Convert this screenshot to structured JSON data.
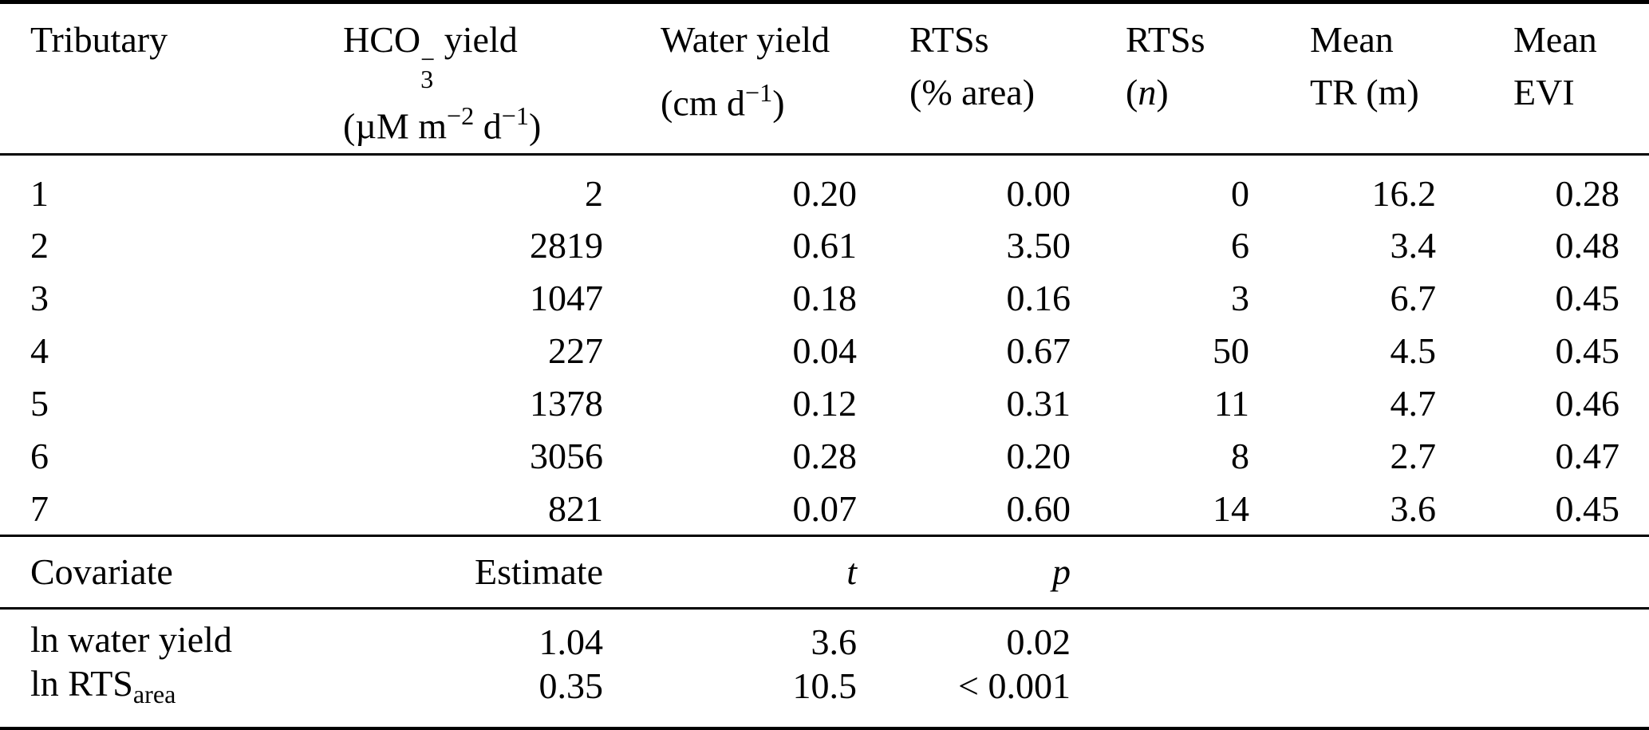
{
  "table": {
    "header": {
      "col1": "Tributary",
      "col2": {
        "base": "HCO",
        "sup": "−",
        "sub": "3",
        "rest": " yield",
        "unit_open": "(µM m",
        "unit_sup1": "−2",
        "unit_mid": " d",
        "unit_sup2": "−1",
        "unit_close": ")"
      },
      "col3": {
        "line1": "Water yield",
        "unit_open": "(cm d",
        "unit_sup": "−1",
        "unit_close": ")"
      },
      "col4": {
        "line1": "RTSs",
        "line2": "(% area)"
      },
      "col5": {
        "line1": "RTSs",
        "paren_open": "(",
        "n": "n",
        "paren_close": ")"
      },
      "col6": {
        "line1": "Mean",
        "line2": "TR (m)"
      },
      "col7": {
        "line1": "Mean",
        "line2": "EVI"
      }
    },
    "rows": [
      {
        "tributary": "1",
        "hco3": "2",
        "water": "0.20",
        "rts_area": "0.00",
        "rts_n": "0",
        "tr": "16.2",
        "evi": "0.28"
      },
      {
        "tributary": "2",
        "hco3": "2819",
        "water": "0.61",
        "rts_area": "3.50",
        "rts_n": "6",
        "tr": "3.4",
        "evi": "0.48"
      },
      {
        "tributary": "3",
        "hco3": "1047",
        "water": "0.18",
        "rts_area": "0.16",
        "rts_n": "3",
        "tr": "6.7",
        "evi": "0.45"
      },
      {
        "tributary": "4",
        "hco3": "227",
        "water": "0.04",
        "rts_area": "0.67",
        "rts_n": "50",
        "tr": "4.5",
        "evi": "0.45"
      },
      {
        "tributary": "5",
        "hco3": "1378",
        "water": "0.12",
        "rts_area": "0.31",
        "rts_n": "11",
        "tr": "4.7",
        "evi": "0.46"
      },
      {
        "tributary": "6",
        "hco3": "3056",
        "water": "0.28",
        "rts_area": "0.20",
        "rts_n": "8",
        "tr": "2.7",
        "evi": "0.47"
      },
      {
        "tributary": "7",
        "hco3": "821",
        "water": "0.07",
        "rts_area": "0.60",
        "rts_n": "14",
        "tr": "3.6",
        "evi": "0.45"
      }
    ],
    "covariates": {
      "header": {
        "covariate": "Covariate",
        "estimate": "Estimate",
        "t": "t",
        "p": "p"
      },
      "rows": [
        {
          "covariate": "ln water yield",
          "covariate_sub": "",
          "estimate": "1.04",
          "t": "3.6",
          "p": "0.02"
        },
        {
          "covariate": "ln RTS",
          "covariate_sub": "area",
          "estimate": "0.35",
          "t": "10.5",
          "p": "< 0.001"
        }
      ]
    }
  }
}
